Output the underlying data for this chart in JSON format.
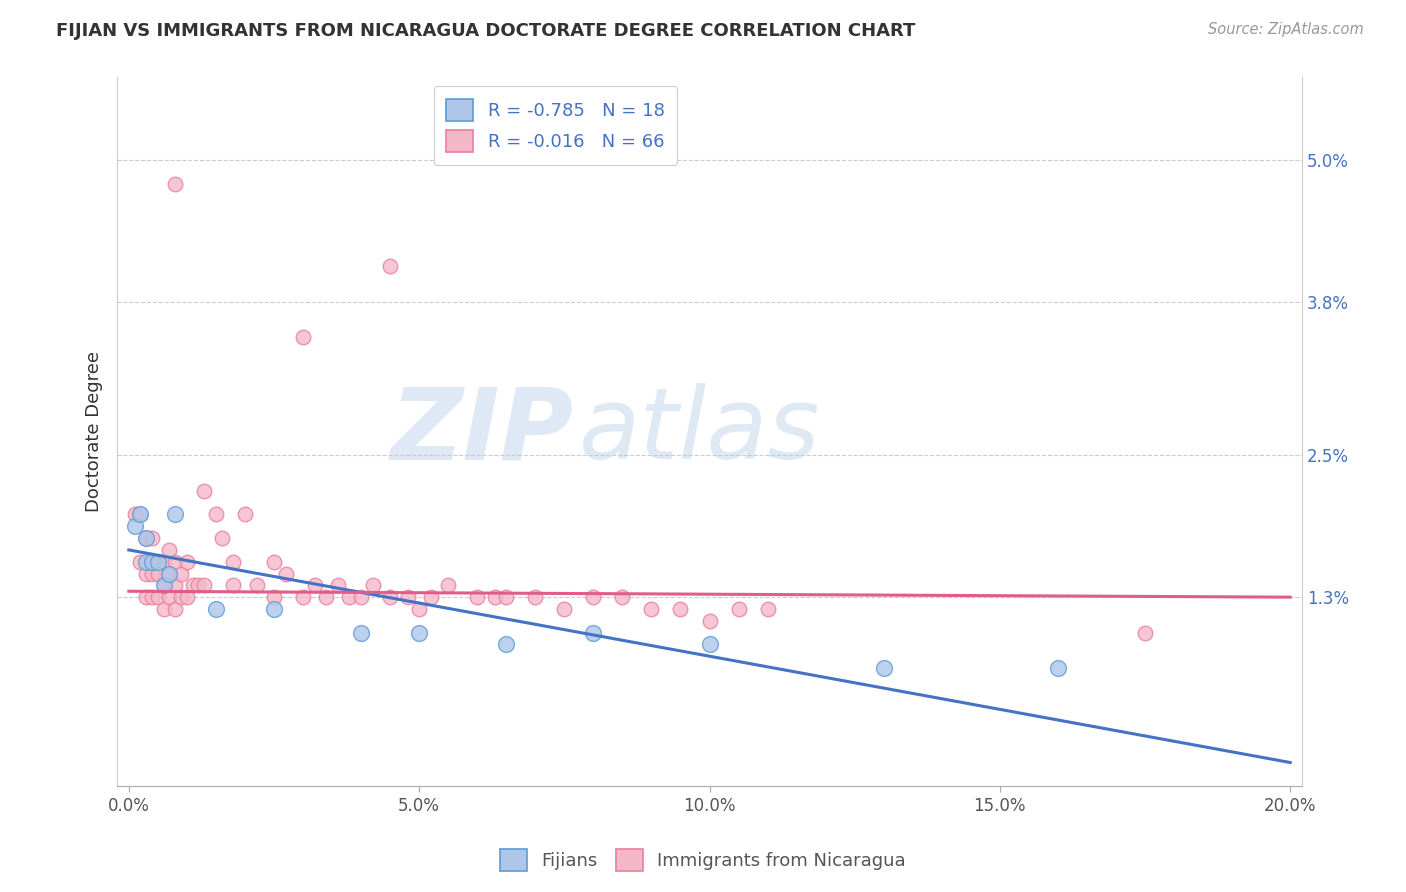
{
  "title": "FIJIAN VS IMMIGRANTS FROM NICARAGUA DOCTORATE DEGREE CORRELATION CHART",
  "source": "Source: ZipAtlas.com",
  "ylabel": "Doctorate Degree",
  "xlim": [
    -0.002,
    0.202
  ],
  "ylim": [
    -0.003,
    0.057
  ],
  "yticks": [
    0.013,
    0.025,
    0.038,
    0.05
  ],
  "ytick_labels": [
    "1.3%",
    "2.5%",
    "3.8%",
    "5.0%"
  ],
  "xticks": [
    0.0,
    0.05,
    0.1,
    0.15,
    0.2
  ],
  "xtick_labels": [
    "0.0%",
    "5.0%",
    "10.0%",
    "15.0%",
    "20.0%"
  ],
  "fijian_color": "#aec6e8",
  "fijian_edge_color": "#5b9bd5",
  "nicaragua_color": "#f4b8c8",
  "nicaragua_edge_color": "#e87fa0",
  "trend_fijian_color": "#4472c4",
  "trend_nicaragua_color": "#e05c8a",
  "legend_R_fijian": "-0.785",
  "legend_N_fijian": "18",
  "legend_R_nicaragua": "-0.016",
  "legend_N_nicaragua": "66",
  "watermark_zip": "ZIP",
  "watermark_atlas": "atlas",
  "fijian_x": [
    0.001,
    0.002,
    0.003,
    0.003,
    0.004,
    0.005,
    0.006,
    0.007,
    0.008,
    0.015,
    0.025,
    0.04,
    0.05,
    0.065,
    0.08,
    0.1,
    0.13,
    0.16
  ],
  "fijian_y": [
    0.019,
    0.02,
    0.016,
    0.018,
    0.016,
    0.016,
    0.014,
    0.015,
    0.02,
    0.012,
    0.012,
    0.01,
    0.01,
    0.009,
    0.01,
    0.009,
    0.007,
    0.007
  ],
  "nicaragua_x": [
    0.001,
    0.002,
    0.002,
    0.003,
    0.003,
    0.003,
    0.004,
    0.004,
    0.004,
    0.005,
    0.005,
    0.005,
    0.006,
    0.006,
    0.006,
    0.007,
    0.007,
    0.007,
    0.008,
    0.008,
    0.008,
    0.009,
    0.009,
    0.01,
    0.01,
    0.011,
    0.012,
    0.013,
    0.013,
    0.015,
    0.016,
    0.018,
    0.018,
    0.02,
    0.022,
    0.025,
    0.025,
    0.027,
    0.03,
    0.032,
    0.034,
    0.036,
    0.038,
    0.04,
    0.042,
    0.045,
    0.048,
    0.05,
    0.052,
    0.055,
    0.06,
    0.063,
    0.065,
    0.07,
    0.075,
    0.08,
    0.085,
    0.09,
    0.095,
    0.1,
    0.105,
    0.11,
    0.175,
    0.03,
    0.045,
    0.008
  ],
  "nicaragua_y": [
    0.02,
    0.02,
    0.016,
    0.018,
    0.015,
    0.013,
    0.018,
    0.015,
    0.013,
    0.016,
    0.015,
    0.013,
    0.016,
    0.014,
    0.012,
    0.017,
    0.015,
    0.013,
    0.016,
    0.014,
    0.012,
    0.015,
    0.013,
    0.016,
    0.013,
    0.014,
    0.014,
    0.022,
    0.014,
    0.02,
    0.018,
    0.014,
    0.016,
    0.02,
    0.014,
    0.016,
    0.013,
    0.015,
    0.013,
    0.014,
    0.013,
    0.014,
    0.013,
    0.013,
    0.014,
    0.013,
    0.013,
    0.012,
    0.013,
    0.014,
    0.013,
    0.013,
    0.013,
    0.013,
    0.012,
    0.013,
    0.013,
    0.012,
    0.012,
    0.011,
    0.012,
    0.012,
    0.01,
    0.035,
    0.041,
    0.048
  ],
  "marker_size_fijian": 130,
  "marker_size_nicaragua": 110,
  "bg_color": "#ffffff",
  "grid_color": "#cccccc",
  "trend_fijian_start_y": 0.017,
  "trend_fijian_end_y": -0.001,
  "trend_nicaragua_start_y": 0.0135,
  "trend_nicaragua_end_y": 0.013
}
